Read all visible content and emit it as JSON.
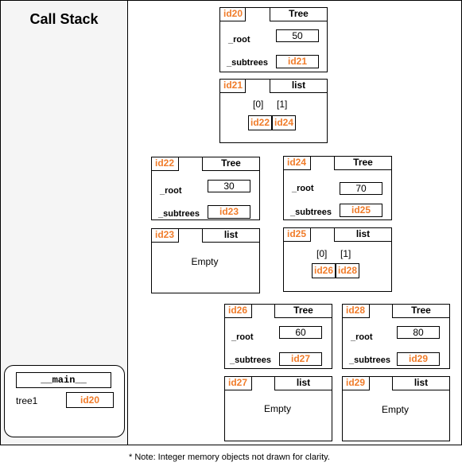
{
  "call_stack_title": "Call Stack",
  "frame": {
    "name": "__main__",
    "var_name": "tree1",
    "var_value": "id20"
  },
  "objects": {
    "id20": {
      "id": "id20",
      "type": "Tree",
      "root_label": "_root",
      "root_value": "50",
      "subtrees_label": "_subtrees",
      "subtrees_value": "id21"
    },
    "id21": {
      "id": "id21",
      "type": "list",
      "idx0": "[0]",
      "idx1": "[1]",
      "val0": "id22",
      "val1": "id24"
    },
    "id22": {
      "id": "id22",
      "type": "Tree",
      "root_label": "_root",
      "root_value": "30",
      "subtrees_label": "_subtrees",
      "subtrees_value": "id23"
    },
    "id23": {
      "id": "id23",
      "type": "list",
      "empty": "Empty"
    },
    "id24": {
      "id": "id24",
      "type": "Tree",
      "root_label": "_root",
      "root_value": "70",
      "subtrees_label": "_subtrees",
      "subtrees_value": "id25"
    },
    "id25": {
      "id": "id25",
      "type": "list",
      "idx0": "[0]",
      "idx1": "[1]",
      "val0": "id26",
      "val1": "id28"
    },
    "id26": {
      "id": "id26",
      "type": "Tree",
      "root_label": "_root",
      "root_value": "60",
      "subtrees_label": "_subtrees",
      "subtrees_value": "id27"
    },
    "id27": {
      "id": "id27",
      "type": "list",
      "empty": "Empty"
    },
    "id28": {
      "id": "id28",
      "type": "Tree",
      "root_label": "_root",
      "root_value": "80",
      "subtrees_label": "_subtrees",
      "subtrees_value": "id29"
    },
    "id29": {
      "id": "id29",
      "type": "list",
      "empty": "Empty"
    }
  },
  "note": "* Note: Integer memory objects not drawn for clarity.",
  "colors": {
    "id_text": "#f07c2a",
    "stack_bg": "#f5f5f5"
  }
}
